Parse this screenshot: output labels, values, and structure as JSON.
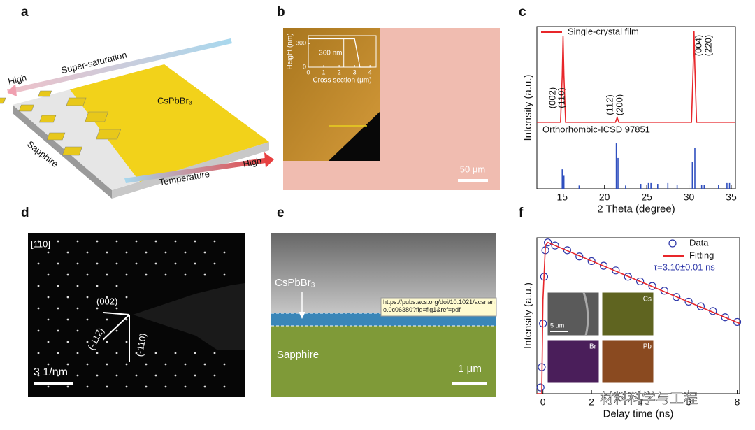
{
  "figure": {
    "panel_labels": [
      "a",
      "b",
      "c",
      "d",
      "e",
      "f"
    ],
    "a": {
      "high_left": "High",
      "supersaturation": "Super-saturation",
      "material": "CsPbBr₃",
      "substrate": "Sapphire",
      "temperature": "Temperature",
      "high_right": "High"
    },
    "b": {
      "scale_bar": "50 μm"
    },
    "d": {
      "zone_axis": "[110]",
      "spots": [
        "(002)",
        "(-112)",
        "(-110)"
      ],
      "scale_bar": "3 1/nm"
    },
    "e": {
      "film": "CsPbBr₃",
      "tooltip": "https://pubs.acs.org/doi/10.1021/acsnano.0c06380?fig=fig1&ref=pdf",
      "substrate": "Sapphire",
      "scale_bar": "1 μm"
    },
    "f": {
      "maps": [
        "Cs",
        "Br",
        "Pb"
      ],
      "scale_bar": "5 μm",
      "watermark": "材料科学与工程"
    }
  },
  "chart_data": [
    {
      "type": "line",
      "x_label": "Cross section (μm)",
      "y_label": "Height (nm)",
      "annotation": "360 nm",
      "x": [
        0,
        3.0,
        3.35,
        4.1
      ],
      "values": [
        360,
        360,
        0,
        0
      ],
      "color": "#ffffff",
      "xlim": [
        0,
        4.4
      ],
      "ylim": [
        0,
        400
      ],
      "xticks": [
        0,
        1,
        2,
        3,
        4
      ],
      "yticks": [
        0,
        300
      ]
    },
    {
      "type": "line",
      "x_label": "2 Theta (degree)",
      "y_label": "Intensity (a.u.)",
      "legend": "upper left",
      "annotations": [
        "(002)",
        "(110)",
        "(112)",
        "(200)",
        "(004)",
        "(220)"
      ],
      "series": [
        {
          "name": "Single-crystal film",
          "color": "#e8262a",
          "x": [
            12,
            14.8,
            15.0,
            15.1,
            15.2,
            15.4,
            21.3,
            21.5,
            21.7,
            30.3,
            30.5,
            30.6,
            30.7,
            30.9,
            35.5
          ],
          "values": [
            82,
            82,
            140,
            188,
            140,
            82,
            82,
            88,
            82,
            82,
            150,
            194,
            150,
            82,
            82
          ]
        },
        {
          "name": "Orthorhombic-ICSD 97851",
          "color": "#2f4fbf",
          "type": "stem",
          "x": [
            15.0,
            15.2,
            17.0,
            21.4,
            21.6,
            22.5,
            24.3,
            25.2,
            25.5,
            26.3,
            27.5,
            28.6,
            30.4,
            30.7,
            31.5,
            31.8,
            33.5,
            34.5,
            34.8
          ],
          "values": [
            24,
            16,
            4,
            56,
            38,
            4,
            6,
            7,
            7,
            6,
            7,
            5,
            33,
            50,
            5,
            5,
            5,
            7,
            7
          ]
        }
      ],
      "xlim": [
        12,
        35.5
      ],
      "ylim": [
        0,
        200
      ],
      "xticks": [
        15,
        20,
        25,
        30,
        35
      ]
    },
    {
      "type": "line",
      "x_label": "Delay time (ns)",
      "y_label": "Intensity (a.u.)",
      "legend": "upper right",
      "annotation": "τ=3.10±0.01 ns",
      "series": [
        {
          "name": "Data",
          "color": "#2b35a8",
          "type": "scatter",
          "x": [
            -0.1,
            -0.05,
            0,
            0.05,
            0.1,
            0.2,
            0.5,
            1,
            1.5,
            2,
            2.5,
            3,
            3.5,
            4,
            4.5,
            5,
            5.5,
            6,
            6.5,
            7,
            7.5,
            8
          ],
          "values": [
            4,
            17,
            45,
            75,
            92,
            97,
            95,
            92,
            88,
            85,
            82,
            79,
            75,
            72,
            69,
            66,
            62,
            59,
            56,
            53,
            49,
            46
          ]
        },
        {
          "name": "Fitting",
          "color": "#e8262a",
          "x": [
            -0.25,
            -0.05,
            0,
            0.1,
            0.2,
            8.1
          ],
          "values": [
            0,
            0,
            60,
            95,
            97,
            45
          ]
        }
      ],
      "xlim": [
        -0.25,
        8.1
      ],
      "ylim": [
        0,
        100
      ],
      "xticks": [
        0,
        2,
        4,
        6,
        8
      ]
    }
  ]
}
